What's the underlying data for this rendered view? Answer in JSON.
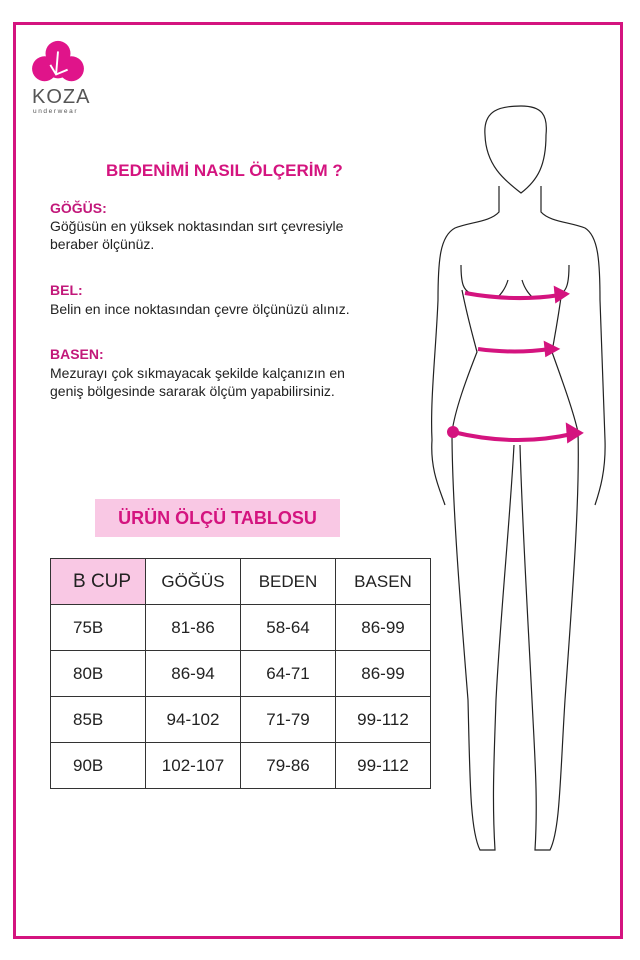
{
  "brand": {
    "name": "KOZA",
    "tagline": "underwear",
    "color": "#d4147f"
  },
  "guide": {
    "title": "BEDENİMİ NASIL ÖLÇERİM ?",
    "sections": [
      {
        "heading": "GÖĞÜS:",
        "lines": [
          "Göğüsün en yüksek noktasından sırt çevresiyle",
          "beraber ölçünüz."
        ]
      },
      {
        "heading": "BEL:",
        "lines": [
          "Belin en ince noktasından çevre ölçünüzü alınız."
        ]
      },
      {
        "heading": "BASEN:",
        "lines": [
          "Mezurayı çok sıkmayacak şekilde kalçanızın en",
          "geniş bölgesinde sararak ölçüm yapabilirsiniz."
        ]
      }
    ]
  },
  "table": {
    "title": "ÜRÜN ÖLÇÜ TABLOSU",
    "headers": [
      "B CUP",
      "GÖĞÜS",
      "BEDEN",
      "BASEN"
    ],
    "rows": [
      [
        "75B",
        "81-86",
        "58-64",
        "86-99"
      ],
      [
        "80B",
        "86-94",
        "64-71",
        "86-99"
      ],
      [
        "85B",
        "94-102",
        "71-79",
        "99-112"
      ],
      [
        "90B",
        "102-107",
        "79-86",
        "99-112"
      ]
    ]
  }
}
